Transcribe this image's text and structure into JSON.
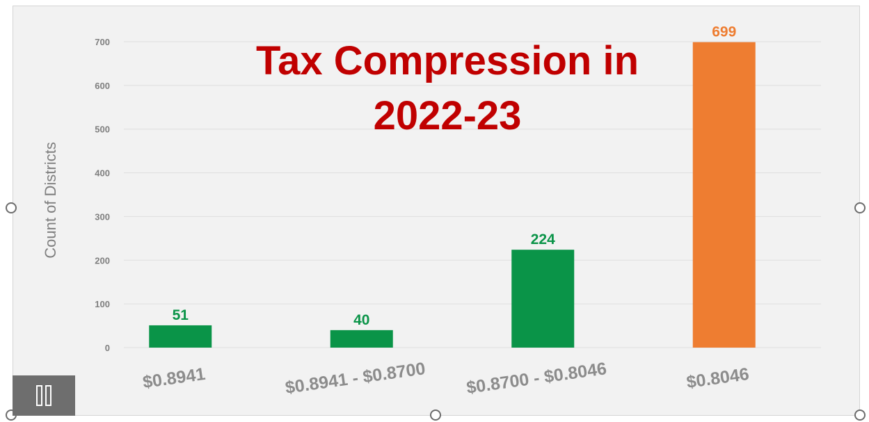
{
  "chart_data": {
    "type": "bar",
    "title_line1": "Tax Compression in",
    "title_line2": "2022-23",
    "ylabel": "Count of Districts",
    "xlabel": "",
    "categories": [
      "$0.8941",
      "$0.8941 - $0.8700",
      "$0.8700 - $0.8046",
      "$0.8046"
    ],
    "values": [
      51,
      40,
      224,
      699
    ],
    "data_labels": [
      "51",
      "40",
      "224",
      "699"
    ],
    "bar_colors": [
      "#0a9448",
      "#0a9448",
      "#0a9448",
      "#ee7d31"
    ],
    "ylim": [
      0,
      700
    ],
    "yticks": [
      0,
      100,
      200,
      300,
      400,
      500,
      600,
      700
    ],
    "ytick_labels": [
      "0",
      "100",
      "200",
      "300",
      "400",
      "500",
      "600",
      "700"
    ],
    "grid": true,
    "title_color": "#c00000",
    "legend": "none"
  }
}
